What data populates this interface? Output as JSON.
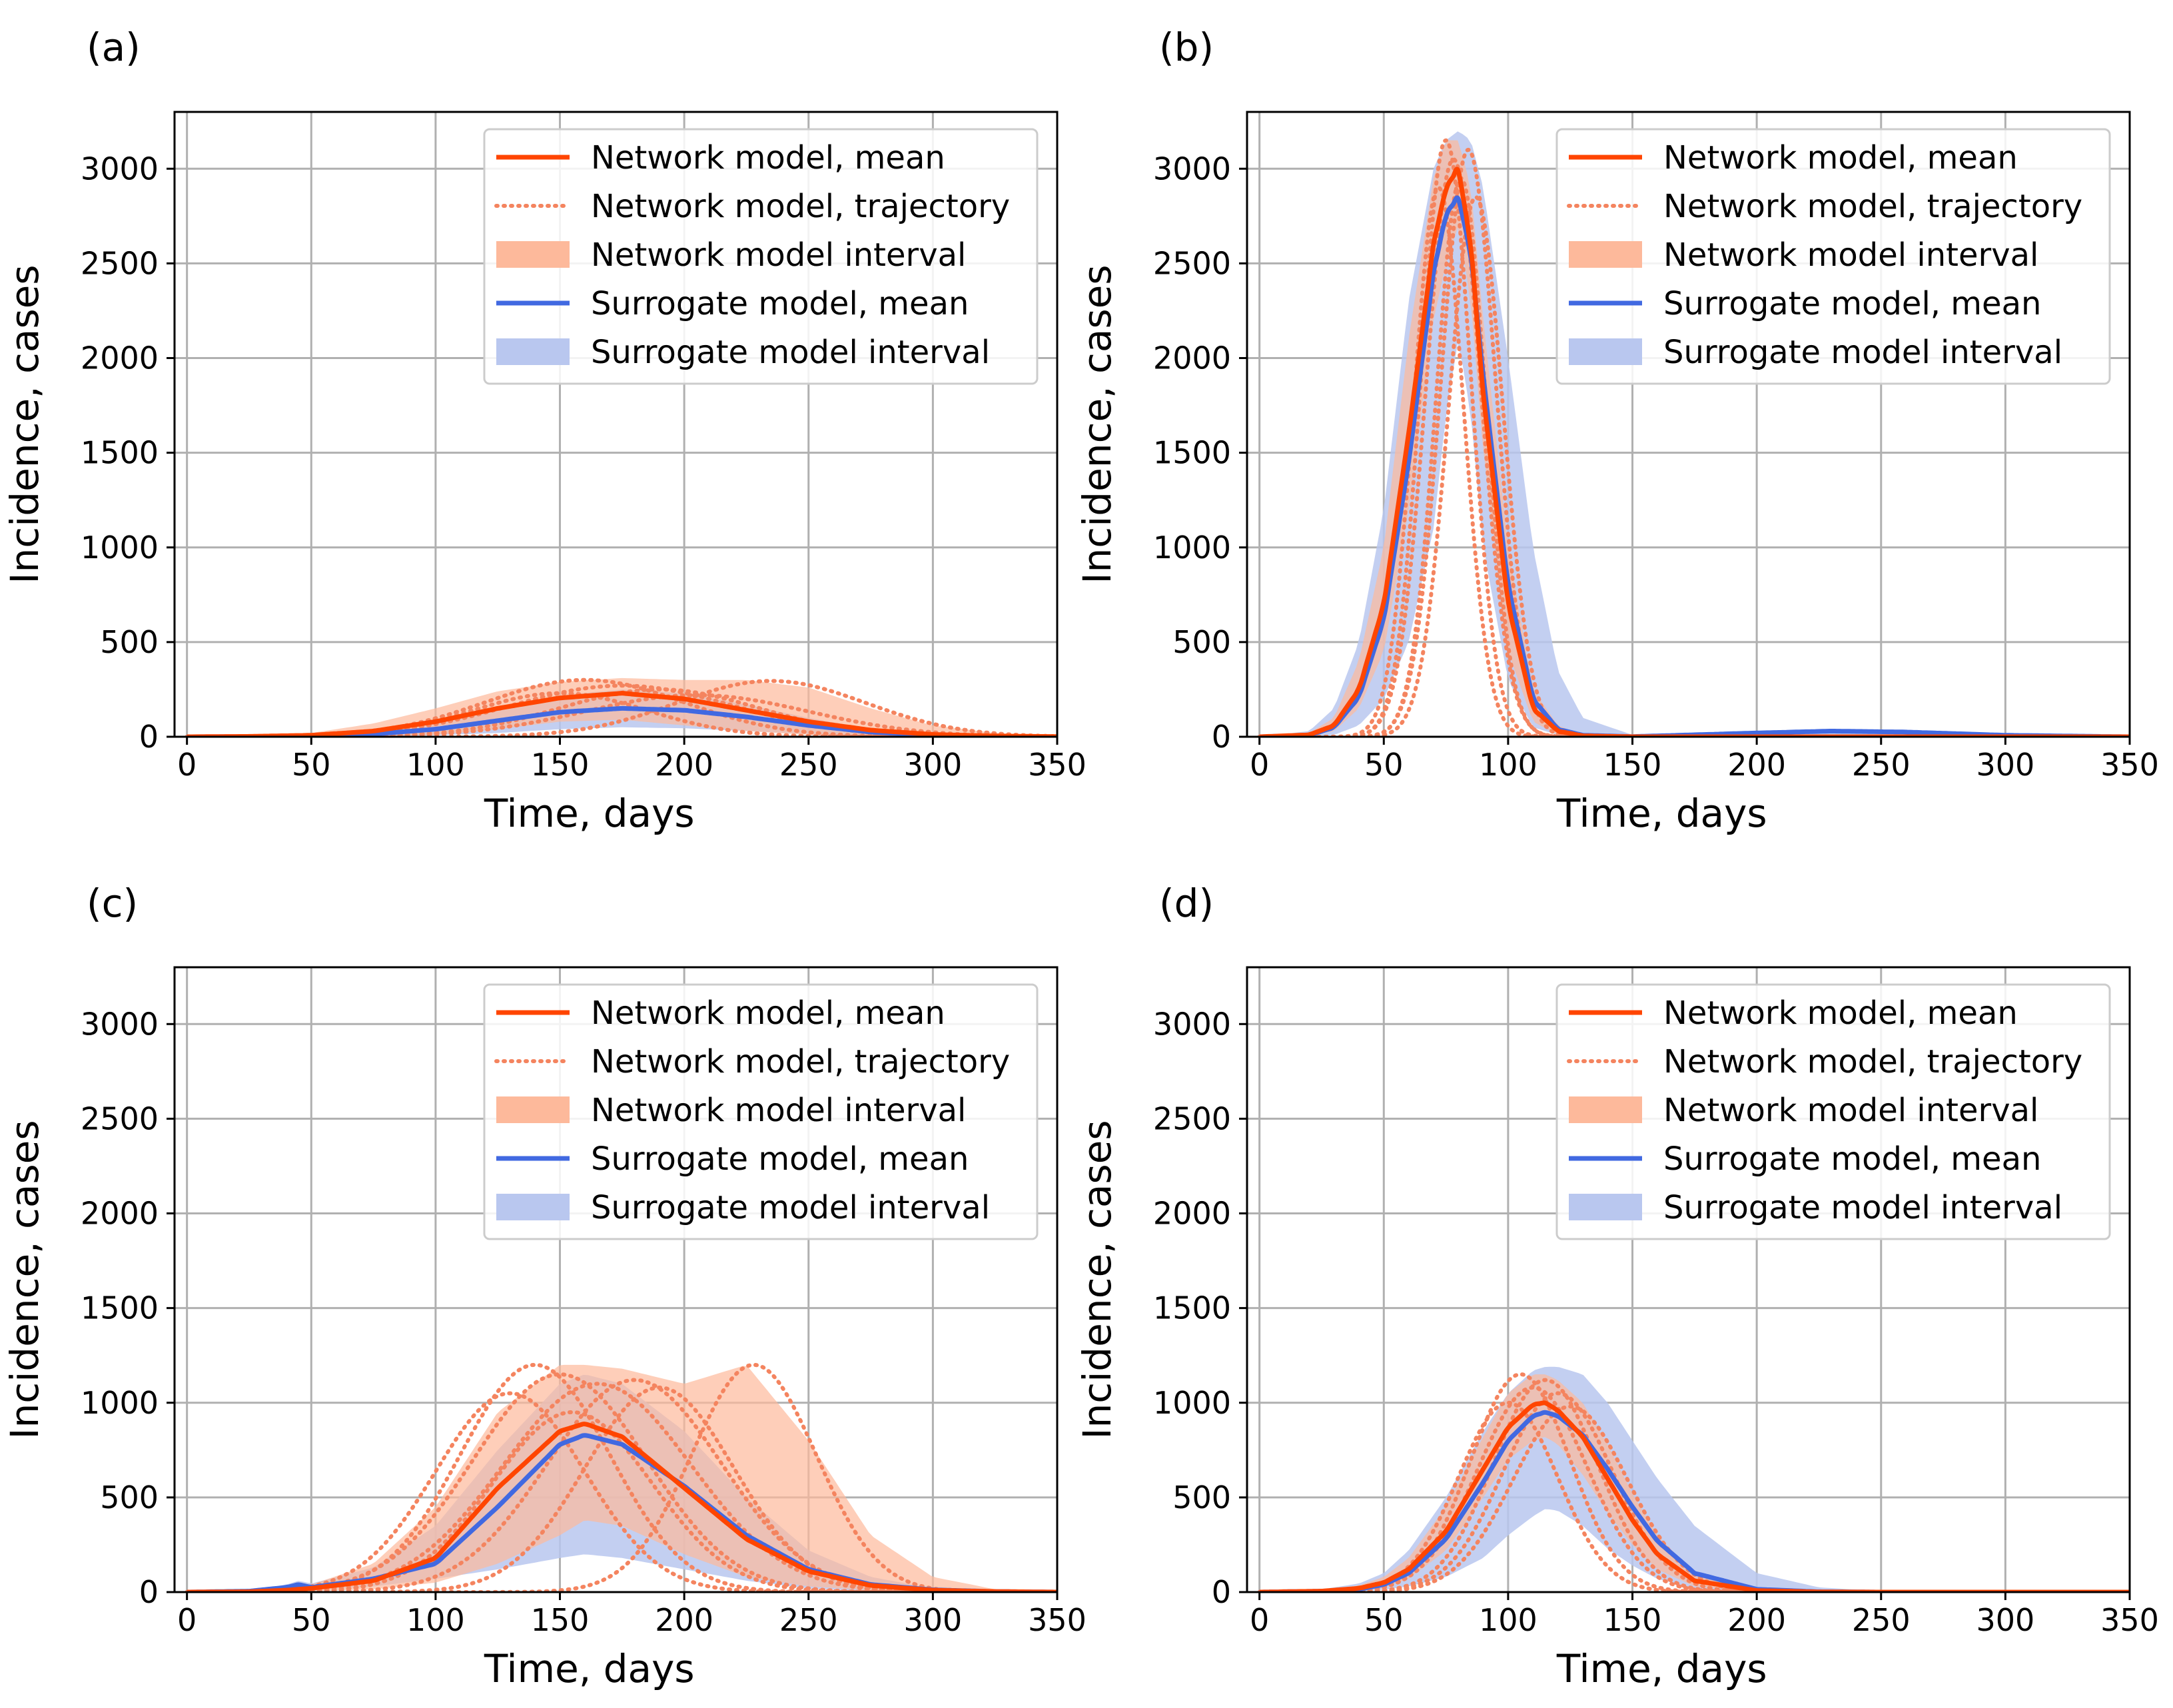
{
  "figure": {
    "colors": {
      "network": "#ff4500",
      "network_traj": "#f4845f",
      "network_fill": "#fdb99b",
      "surrogate": "#4169e1",
      "surrogate_fill": "#b9c7ef",
      "grid": "#b0b0b0"
    },
    "legend_labels": [
      "Network model, mean",
      "Network model, trajectory",
      "Network model interval",
      "Surrogate model, mean",
      "Surrogate model interval"
    ]
  },
  "chart_data": [
    {
      "panel": "(a)",
      "type": "line",
      "xlabel": "Time, days",
      "ylabel": "Incidence, cases",
      "xlim": [
        -5,
        350
      ],
      "ylim": [
        0,
        3300
      ],
      "xticks": [
        0,
        50,
        100,
        150,
        200,
        250,
        300,
        350
      ],
      "yticks": [
        0,
        500,
        1000,
        1500,
        2000,
        2500,
        3000
      ],
      "grid": true,
      "legend": "top-right",
      "x": [
        0,
        25,
        50,
        75,
        100,
        125,
        150,
        175,
        200,
        225,
        250,
        275,
        300,
        325,
        350
      ],
      "series": [
        {
          "name": "Network model, mean",
          "values": [
            0,
            2,
            8,
            30,
            80,
            150,
            205,
            230,
            200,
            140,
            80,
            35,
            12,
            4,
            1
          ]
        },
        {
          "name": "Surrogate model, mean",
          "values": [
            0,
            1,
            4,
            14,
            40,
            85,
            130,
            150,
            140,
            105,
            60,
            25,
            8,
            2,
            0
          ]
        },
        {
          "name": "Network model interval",
          "lower": [
            0,
            0,
            0,
            2,
            10,
            40,
            80,
            90,
            60,
            30,
            10,
            3,
            0,
            0,
            0
          ],
          "upper": [
            0,
            5,
            20,
            70,
            150,
            240,
            290,
            310,
            300,
            300,
            260,
            150,
            60,
            20,
            5
          ]
        },
        {
          "name": "Surrogate model interval",
          "lower": [
            0,
            0,
            0,
            2,
            8,
            20,
            40,
            50,
            45,
            30,
            15,
            5,
            1,
            0,
            0
          ],
          "upper": [
            0,
            3,
            12,
            40,
            90,
            160,
            220,
            250,
            230,
            170,
            100,
            40,
            12,
            3,
            0
          ]
        }
      ],
      "trajectories": [
        {
          "peak_x": 160,
          "peak_y": 300,
          "width": 40
        },
        {
          "peak_x": 175,
          "peak_y": 270,
          "width": 45
        },
        {
          "peak_x": 190,
          "peak_y": 250,
          "width": 40
        },
        {
          "peak_x": 150,
          "peak_y": 230,
          "width": 35
        },
        {
          "peak_x": 235,
          "peak_y": 295,
          "width": 38
        },
        {
          "peak_x": 205,
          "peak_y": 220,
          "width": 45
        }
      ]
    },
    {
      "panel": "(b)",
      "type": "line",
      "xlabel": "Time, days",
      "ylabel": "Incidence, cases",
      "xlim": [
        -5,
        350
      ],
      "ylim": [
        0,
        3300
      ],
      "xticks": [
        0,
        50,
        100,
        150,
        200,
        250,
        300,
        350
      ],
      "yticks": [
        0,
        500,
        1000,
        1500,
        2000,
        2500,
        3000
      ],
      "grid": true,
      "legend": "top-right",
      "x": [
        0,
        20,
        30,
        40,
        50,
        60,
        70,
        75,
        80,
        85,
        90,
        100,
        110,
        120,
        130,
        150,
        200,
        230,
        260,
        300,
        350
      ],
      "series": [
        {
          "name": "Network model, mean",
          "values": [
            0,
            10,
            60,
            250,
            700,
            1600,
            2600,
            2900,
            3000,
            2600,
            1800,
            700,
            150,
            30,
            5,
            0,
            0,
            0,
            0,
            0,
            0
          ]
        },
        {
          "name": "Surrogate model, mean",
          "values": [
            0,
            8,
            50,
            210,
            620,
            1450,
            2450,
            2760,
            2850,
            2550,
            1900,
            800,
            200,
            40,
            8,
            1,
            20,
            30,
            25,
            8,
            0
          ]
        },
        {
          "name": "Network model interval",
          "lower": [
            0,
            5,
            30,
            150,
            450,
            1200,
            2200,
            2500,
            2700,
            2300,
            1500,
            450,
            80,
            10,
            2,
            0,
            0,
            0,
            0,
            0,
            0
          ],
          "upper": [
            0,
            20,
            100,
            400,
            1000,
            2100,
            2950,
            3150,
            3150,
            2900,
            2200,
            1000,
            250,
            60,
            10,
            0,
            0,
            0,
            0,
            0,
            0
          ]
        },
        {
          "name": "Surrogate model interval",
          "lower": [
            0,
            2,
            10,
            60,
            200,
            500,
            1100,
            1700,
            2100,
            1700,
            1000,
            300,
            50,
            10,
            2,
            0,
            0,
            0,
            0,
            0,
            0
          ],
          "upper": [
            0,
            30,
            150,
            500,
            1200,
            2300,
            3000,
            3150,
            3200,
            3150,
            2900,
            2000,
            1000,
            350,
            100,
            10,
            30,
            40,
            35,
            10,
            0
          ]
        }
      ],
      "trajectories": [
        {
          "peak_x": 75,
          "peak_y": 3150,
          "width": 10
        },
        {
          "peak_x": 78,
          "peak_y": 3050,
          "width": 11
        },
        {
          "peak_x": 81,
          "peak_y": 2950,
          "width": 10
        },
        {
          "peak_x": 84,
          "peak_y": 3100,
          "width": 11
        },
        {
          "peak_x": 72,
          "peak_y": 2900,
          "width": 10
        },
        {
          "peak_x": 87,
          "peak_y": 2850,
          "width": 11
        }
      ]
    },
    {
      "panel": "(c)",
      "type": "line",
      "xlabel": "Time, days",
      "ylabel": "Incidence, cases",
      "xlim": [
        -5,
        350
      ],
      "ylim": [
        0,
        3300
      ],
      "xticks": [
        0,
        50,
        100,
        150,
        200,
        250,
        300,
        350
      ],
      "yticks": [
        0,
        500,
        1000,
        1500,
        2000,
        2500,
        3000
      ],
      "grid": true,
      "legend": "top-right",
      "x": [
        0,
        25,
        40,
        45,
        50,
        75,
        100,
        125,
        150,
        160,
        175,
        200,
        225,
        250,
        275,
        300,
        325,
        350
      ],
      "series": [
        {
          "name": "Network model, mean",
          "values": [
            0,
            2,
            10,
            15,
            20,
            60,
            180,
            550,
            850,
            890,
            820,
            550,
            280,
            110,
            35,
            10,
            3,
            0
          ]
        },
        {
          "name": "Surrogate model, mean",
          "values": [
            0,
            5,
            25,
            40,
            25,
            70,
            150,
            450,
            780,
            830,
            780,
            560,
            300,
            120,
            40,
            12,
            3,
            0
          ]
        },
        {
          "name": "Network model interval",
          "lower": [
            0,
            0,
            2,
            4,
            5,
            15,
            50,
            150,
            300,
            380,
            350,
            200,
            80,
            30,
            10,
            2,
            0,
            0
          ],
          "upper": [
            0,
            10,
            30,
            40,
            40,
            150,
            450,
            950,
            1200,
            1200,
            1180,
            1100,
            1200,
            800,
            300,
            80,
            15,
            0
          ]
        },
        {
          "name": "Surrogate model interval",
          "lower": [
            0,
            2,
            10,
            20,
            10,
            30,
            70,
            120,
            180,
            200,
            180,
            120,
            60,
            20,
            5,
            1,
            0,
            0
          ],
          "upper": [
            0,
            10,
            40,
            60,
            45,
            130,
            350,
            750,
            1100,
            1150,
            1100,
            850,
            500,
            220,
            80,
            20,
            5,
            0
          ]
        }
      ],
      "trajectories": [
        {
          "peak_x": 140,
          "peak_y": 1200,
          "width": 30
        },
        {
          "peak_x": 150,
          "peak_y": 1150,
          "width": 35
        },
        {
          "peak_x": 165,
          "peak_y": 1100,
          "width": 38
        },
        {
          "peak_x": 180,
          "peak_y": 1120,
          "width": 35
        },
        {
          "peak_x": 190,
          "peak_y": 1080,
          "width": 30
        },
        {
          "peak_x": 228,
          "peak_y": 1200,
          "width": 25
        },
        {
          "peak_x": 130,
          "peak_y": 1050,
          "width": 30
        },
        {
          "peak_x": 155,
          "peak_y": 950,
          "width": 32
        }
      ]
    },
    {
      "panel": "(d)",
      "type": "line",
      "xlabel": "Time, days",
      "ylabel": "Incidence, cases",
      "xlim": [
        -5,
        350
      ],
      "ylim": [
        0,
        3300
      ],
      "xticks": [
        0,
        50,
        100,
        150,
        200,
        250,
        300,
        350
      ],
      "yticks": [
        0,
        500,
        1000,
        1500,
        2000,
        2500,
        3000
      ],
      "grid": true,
      "legend": "top-right",
      "x": [
        0,
        25,
        40,
        50,
        60,
        75,
        90,
        100,
        110,
        115,
        120,
        130,
        140,
        150,
        160,
        175,
        200,
        225,
        250,
        300,
        350
      ],
      "series": [
        {
          "name": "Network model, mean",
          "values": [
            0,
            5,
            20,
            50,
            120,
            320,
            650,
            870,
            990,
            1000,
            960,
            820,
            600,
            380,
            200,
            60,
            8,
            1,
            0,
            0,
            0
          ]
        },
        {
          "name": "Surrogate model, mean",
          "values": [
            0,
            5,
            15,
            40,
            100,
            280,
            580,
            800,
            930,
            950,
            930,
            830,
            650,
            450,
            270,
            100,
            15,
            2,
            0,
            0,
            0
          ]
        },
        {
          "name": "Network model interval",
          "lower": [
            0,
            2,
            8,
            25,
            70,
            220,
            500,
            700,
            800,
            820,
            780,
            620,
            420,
            250,
            120,
            30,
            3,
            0,
            0,
            0,
            0
          ],
          "upper": [
            0,
            10,
            35,
            80,
            180,
            450,
            820,
            1050,
            1150,
            1150,
            1120,
            1000,
            780,
            520,
            300,
            100,
            15,
            2,
            0,
            0,
            0
          ]
        },
        {
          "name": "Surrogate model interval",
          "lower": [
            0,
            1,
            5,
            12,
            30,
            80,
            180,
            300,
            400,
            440,
            430,
            350,
            230,
            140,
            70,
            20,
            3,
            0,
            0,
            0,
            0
          ],
          "upper": [
            0,
            15,
            45,
            100,
            220,
            500,
            850,
            1050,
            1170,
            1190,
            1190,
            1150,
            1000,
            800,
            600,
            350,
            100,
            25,
            5,
            0,
            0
          ]
        }
      ],
      "trajectories": [
        {
          "peak_x": 105,
          "peak_y": 1150,
          "width": 20
        },
        {
          "peak_x": 110,
          "peak_y": 1080,
          "width": 22
        },
        {
          "peak_x": 115,
          "peak_y": 1120,
          "width": 21
        },
        {
          "peak_x": 120,
          "peak_y": 1050,
          "width": 22
        },
        {
          "peak_x": 100,
          "peak_y": 1000,
          "width": 20
        },
        {
          "peak_x": 125,
          "peak_y": 980,
          "width": 23
        }
      ]
    }
  ]
}
